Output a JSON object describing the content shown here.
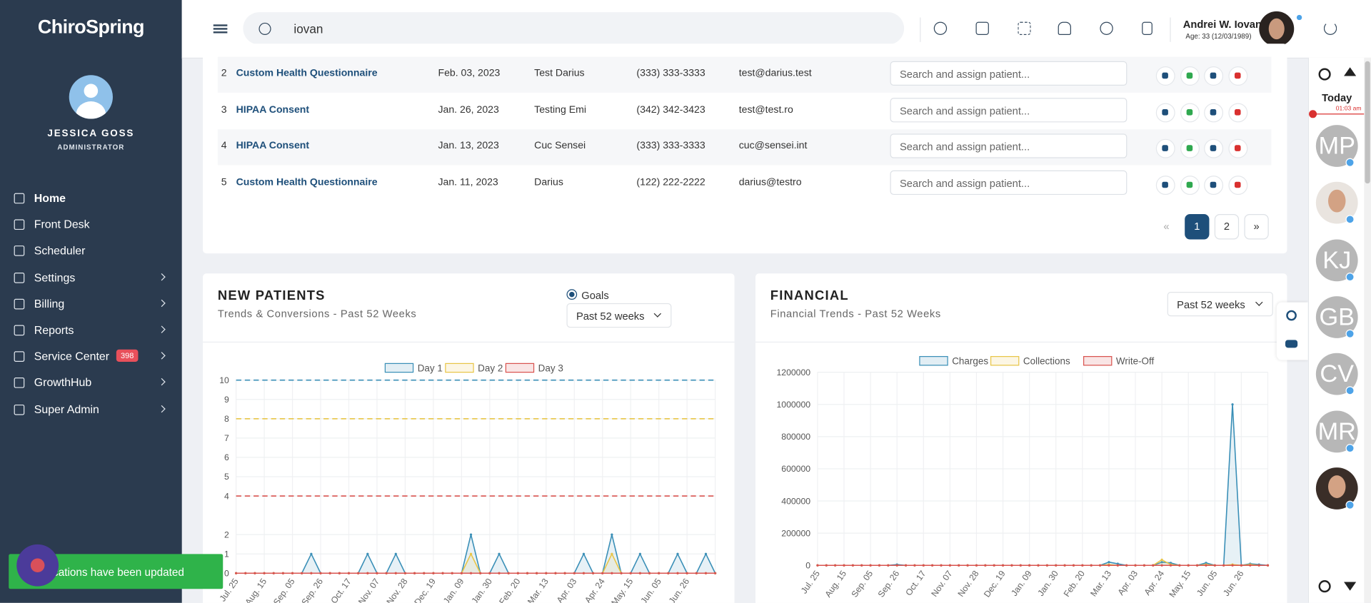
{
  "sidebar": {
    "logo": "ChiroSpring",
    "user_name": "JESSICA GOSS",
    "user_role": "ADMINISTRATOR",
    "nav": [
      {
        "label": "Home",
        "arrow": false
      },
      {
        "label": "Front Desk",
        "arrow": false
      },
      {
        "label": "Scheduler",
        "arrow": false
      },
      {
        "label": "Settings",
        "arrow": true
      },
      {
        "label": "Billing",
        "arrow": true
      },
      {
        "label": "Reports",
        "arrow": true
      },
      {
        "label": "Service Center",
        "arrow": true,
        "badge": "398"
      },
      {
        "label": "GrowthHub",
        "arrow": true
      },
      {
        "label": "Super Admin",
        "arrow": true
      }
    ]
  },
  "topbar": {
    "search": "iovan",
    "patient_name": "Andrei W. Iovan",
    "patient_age": "Age: 33 (12/03/1989)"
  },
  "table": {
    "rows": [
      [
        "2",
        "Custom Health Questionnaire",
        "Feb. 03, 2023",
        "Test Darius",
        "(333) 333-3333",
        "test@darius.test",
        "Search and assign patient..."
      ],
      [
        "3",
        "HIPAA Consent",
        "Jan. 26, 2023",
        "Testing Emi",
        "(342) 342-3423",
        "test@test.ro",
        "Search and assign patient..."
      ],
      [
        "4",
        "HIPAA Consent",
        "Jan. 13, 2023",
        "Cuc Sensei",
        "(333) 333-3333",
        "cuc@sensei.int",
        "Search and assign patient..."
      ],
      [
        "5",
        "Custom Health Questionnaire",
        "Jan. 11, 2023",
        "Darius",
        "(122) 222-2222",
        "darius@testro",
        "Search and assign patient..."
      ]
    ]
  },
  "pagination": {
    "prev": "«",
    "pages": [
      "1",
      "2"
    ],
    "next": "»"
  },
  "new_patients": {
    "title": "NEW PATIENTS",
    "subtitle": "Trends & Conversions - Past 52 Weeks",
    "goals_label": "Goals",
    "range": "Past 52 weeks",
    "chart": {
      "type": "line",
      "categories": [
        "Jul. 25",
        null,
        null,
        "Aug. 15",
        null,
        null,
        "Sep. 05",
        null,
        null,
        "Sep. 26",
        null,
        null,
        "Oct. 17",
        null,
        null,
        "Nov. 07",
        null,
        null,
        "Nov. 28",
        null,
        null,
        "Dec. 19",
        null,
        null,
        "Jan. 09",
        null,
        null,
        "Jan. 30",
        null,
        null,
        "Feb. 20",
        null,
        null,
        "Mar. 13",
        null,
        null,
        "Apr. 03",
        null,
        null,
        "Apr. 24",
        null,
        null,
        "May. 15",
        null,
        null,
        "Jun. 05",
        null,
        null,
        "Jun. 26",
        null,
        null,
        null
      ],
      "series": [
        {
          "name": "Day 1",
          "color": "#3a8fb7",
          "goal": 10,
          "values": [
            0,
            0,
            0,
            0,
            0,
            0,
            0,
            0,
            1,
            0,
            0,
            0,
            0,
            0,
            1,
            0,
            0,
            1,
            0,
            0,
            0,
            0,
            0,
            0,
            0,
            2,
            0,
            0,
            1,
            0,
            0,
            0,
            0,
            0,
            0,
            0,
            0,
            1,
            0,
            0,
            2,
            0,
            0,
            1,
            0,
            0,
            0,
            1,
            0,
            0,
            1,
            0
          ]
        },
        {
          "name": "Day 2",
          "color": "#e8c547",
          "goal": 8,
          "values": [
            0,
            0,
            0,
            0,
            0,
            0,
            0,
            0,
            0,
            0,
            0,
            0,
            0,
            0,
            0,
            0,
            0,
            0,
            0,
            0,
            0,
            0,
            0,
            0,
            0,
            1,
            0,
            0,
            0,
            0,
            0,
            0,
            0,
            0,
            0,
            0,
            0,
            0,
            0,
            0,
            1,
            0,
            0,
            0,
            0,
            0,
            0,
            0,
            0,
            0,
            0,
            0
          ]
        },
        {
          "name": "Day 3",
          "color": "#d9534f",
          "goal": 4,
          "values": [
            0,
            0,
            0,
            0,
            0,
            0,
            0,
            0,
            0,
            0,
            0,
            0,
            0,
            0,
            0,
            0,
            0,
            0,
            0,
            0,
            0,
            0,
            0,
            0,
            0,
            0,
            0,
            0,
            0,
            0,
            0,
            0,
            0,
            0,
            0,
            0,
            0,
            0,
            0,
            0,
            0,
            0,
            0,
            0,
            0,
            0,
            0,
            0,
            0,
            0,
            0,
            0
          ]
        }
      ],
      "ylim": [
        0,
        10
      ],
      "yticks": [
        0,
        1,
        2,
        4,
        5,
        6,
        7,
        8,
        9,
        10
      ],
      "grid": true
    }
  },
  "financial": {
    "title": "FINANCIAL",
    "subtitle": "Financial Trends - Past 52 Weeks",
    "range": "Past 52 weeks",
    "chart": {
      "type": "line",
      "categories": [
        "Jul. 25",
        null,
        null,
        "Aug. 15",
        null,
        null,
        "Sep. 05",
        null,
        null,
        "Sep. 26",
        null,
        null,
        "Oct. 17",
        null,
        null,
        "Nov. 07",
        null,
        null,
        "Nov. 28",
        null,
        null,
        "Dec. 19",
        null,
        null,
        "Jan. 09",
        null,
        null,
        "Jan. 30",
        null,
        null,
        "Feb. 20",
        null,
        null,
        "Mar. 13",
        null,
        null,
        "Apr. 03",
        null,
        null,
        "Apr. 24",
        null,
        null,
        "May. 15",
        null,
        null,
        "Jun. 05",
        null,
        null,
        "Jun. 26",
        null,
        null,
        null
      ],
      "series": [
        {
          "name": "Charges",
          "color": "#3a8fb7",
          "values": [
            0,
            0,
            0,
            0,
            0,
            0,
            0,
            0,
            0,
            5000,
            0,
            0,
            0,
            0,
            0,
            0,
            0,
            0,
            0,
            0,
            0,
            0,
            0,
            0,
            0,
            0,
            0,
            0,
            0,
            0,
            0,
            0,
            0,
            20000,
            10000,
            0,
            0,
            0,
            0,
            20000,
            15000,
            0,
            0,
            0,
            15000,
            0,
            0,
            1000000,
            0,
            10000,
            5000,
            0
          ]
        },
        {
          "name": "Collections",
          "color": "#e8c547",
          "values": [
            0,
            0,
            0,
            0,
            0,
            0,
            0,
            0,
            0,
            0,
            0,
            0,
            0,
            0,
            0,
            0,
            0,
            0,
            0,
            0,
            0,
            0,
            0,
            0,
            0,
            0,
            0,
            0,
            0,
            0,
            0,
            0,
            0,
            5000,
            0,
            0,
            0,
            0,
            0,
            35000,
            5000,
            0,
            0,
            0,
            5000,
            0,
            0,
            5000,
            0,
            5000,
            0,
            0
          ]
        },
        {
          "name": "Write-Off",
          "color": "#d9534f",
          "values": [
            0,
            0,
            0,
            0,
            0,
            0,
            0,
            0,
            0,
            0,
            0,
            0,
            0,
            0,
            0,
            0,
            0,
            0,
            0,
            0,
            0,
            0,
            0,
            0,
            0,
            0,
            0,
            0,
            0,
            0,
            0,
            0,
            0,
            0,
            0,
            0,
            0,
            0,
            0,
            0,
            0,
            0,
            0,
            0,
            0,
            0,
            0,
            0,
            0,
            0,
            0,
            0
          ]
        }
      ],
      "ylim": [
        0,
        1200000
      ],
      "yticks": [
        0,
        200000,
        400000,
        600000,
        800000,
        1000000,
        1200000
      ],
      "grid": true
    }
  },
  "rail": {
    "today": "Today",
    "time": "01:03 am",
    "avatars": [
      "MP",
      null,
      "KJ",
      "GB",
      "CV",
      "MR",
      null
    ]
  },
  "toast": "Notifications have been updated"
}
